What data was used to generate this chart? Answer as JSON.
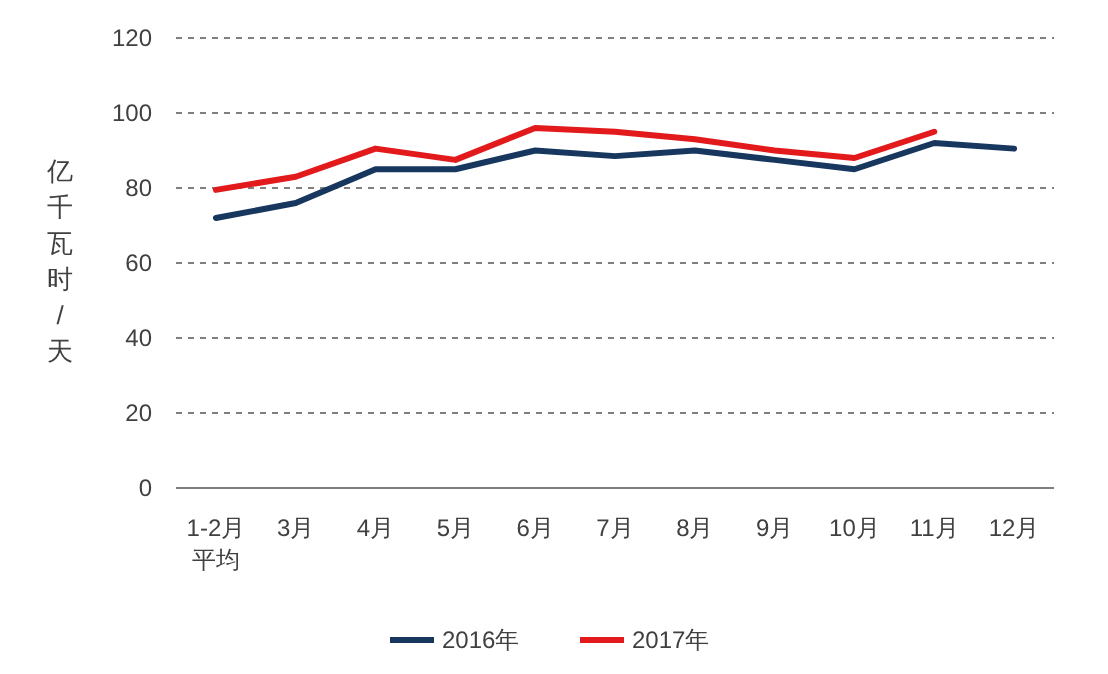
{
  "chart_data": {
    "type": "line",
    "ylabel": "亿千瓦时/天",
    "categories": [
      "1-2月平均",
      "3月",
      "4月",
      "5月",
      "6月",
      "7月",
      "8月",
      "9月",
      "10月",
      "11月",
      "12月"
    ],
    "series": [
      {
        "name": "2016年",
        "color": "#17375e",
        "values": [
          72,
          76,
          85,
          85,
          90,
          88.5,
          90,
          87.5,
          85,
          92,
          90.5
        ]
      },
      {
        "name": "2017年",
        "color": "#e31a1c",
        "values": [
          79.5,
          83,
          90.5,
          87.5,
          96,
          95,
          93,
          90,
          88,
          95,
          null
        ]
      }
    ],
    "ylim": [
      0,
      120
    ],
    "yticks": [
      0,
      20,
      40,
      60,
      80,
      100,
      120
    ],
    "grid": "y",
    "legend": "bottom",
    "marker": "none",
    "line_style": "solid"
  }
}
